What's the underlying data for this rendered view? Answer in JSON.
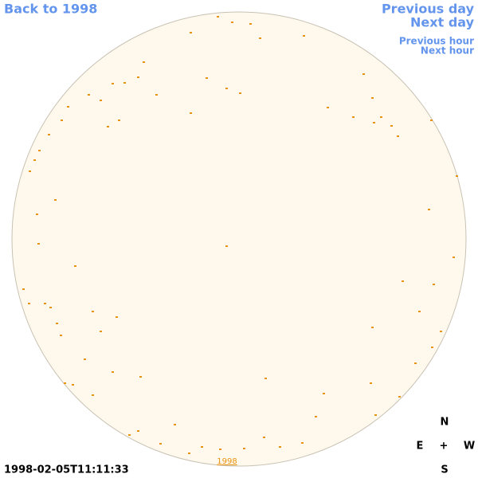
{
  "nav": {
    "back": "Back to 1998",
    "previous_day": "Previous day",
    "next_day": "Next day",
    "previous_hour": "Previous hour",
    "next_hour": "Next hour"
  },
  "map_label": "1998",
  "timestamp": "1998-02-05T11:11:33",
  "compass": {
    "north": "N",
    "east": "E",
    "center": "+",
    "west": "W",
    "south": "S"
  }
}
